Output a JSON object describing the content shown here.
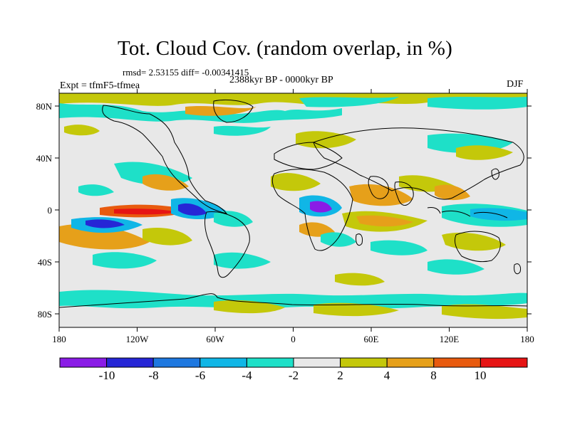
{
  "header": {
    "title": "Tot. Cloud Cov. (random overlap, in %)",
    "stats": "rmsd= 2.53155 diff= -0.00341415",
    "subtitle": "2388kyr BP - 0000kyr BP",
    "experiment": "Expt = tfmF5-tfmea",
    "season": "DJF"
  },
  "axes": {
    "x_ticks": [
      "180",
      "120W",
      "60W",
      "0",
      "60E",
      "120E",
      "180"
    ],
    "y_ticks": [
      "80N",
      "40N",
      "0",
      "40S",
      "80S"
    ]
  },
  "colorbar": {
    "labels": [
      "-10",
      "-8",
      "-6",
      "-4",
      "-2",
      "2",
      "4",
      "8",
      "10"
    ],
    "colors": [
      "#8a1ce6",
      "#2626d6",
      "#1e78e0",
      "#10b6e6",
      "#1ee0c8",
      "#e8e8e8",
      "#c4c80a",
      "#e6a01a",
      "#e85a0e",
      "#e61414"
    ]
  },
  "palette": {
    "neutral": "#e8e8e8",
    "yellow": "#c4c80a",
    "orange": "#e6a01a",
    "orange_red": "#e85a0e",
    "red": "#e61414",
    "cyan": "#1ee0c8",
    "light_blue": "#10b6e6",
    "blue": "#1e78e0",
    "dark_blue": "#2626d6",
    "purple": "#8a1ce6"
  }
}
